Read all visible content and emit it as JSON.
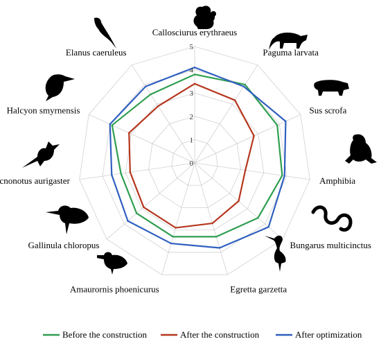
{
  "chart_data": {
    "type": "radar",
    "categories": [
      "Callosciurus erythraeus",
      "Paguma larvata",
      "Sus scrofa",
      "Amphibia",
      "Bungarus multicinctus",
      "Egretta garzetta",
      "Amaurornis phoenicurus",
      "Gallinula chloropus",
      "Pycnonotus aurigaster",
      "Halcyon smyrnensis",
      "Elanus caeruleus"
    ],
    "rticks": [
      "0",
      "1",
      "2",
      "3",
      "4",
      "5"
    ],
    "rlim": [
      0,
      5
    ],
    "series": [
      {
        "name": "Before the construction",
        "color": "#2e9e4f",
        "values": [
          3.8,
          4.0,
          3.9,
          3.8,
          3.6,
          3.3,
          3.3,
          3.3,
          3.2,
          3.9,
          3.5
        ]
      },
      {
        "name": "After the construction",
        "color": "#b5361d",
        "values": [
          3.4,
          3.2,
          2.8,
          2.2,
          2.5,
          2.7,
          2.9,
          2.9,
          2.8,
          3.1,
          2.9
        ]
      },
      {
        "name": "After optimization",
        "color": "#2f5fc0",
        "values": [
          4.1,
          3.9,
          4.3,
          3.9,
          4.2,
          3.8,
          3.6,
          3.8,
          3.6,
          4.0,
          3.9
        ]
      }
    ],
    "grid": true,
    "legend_position": "bottom"
  }
}
